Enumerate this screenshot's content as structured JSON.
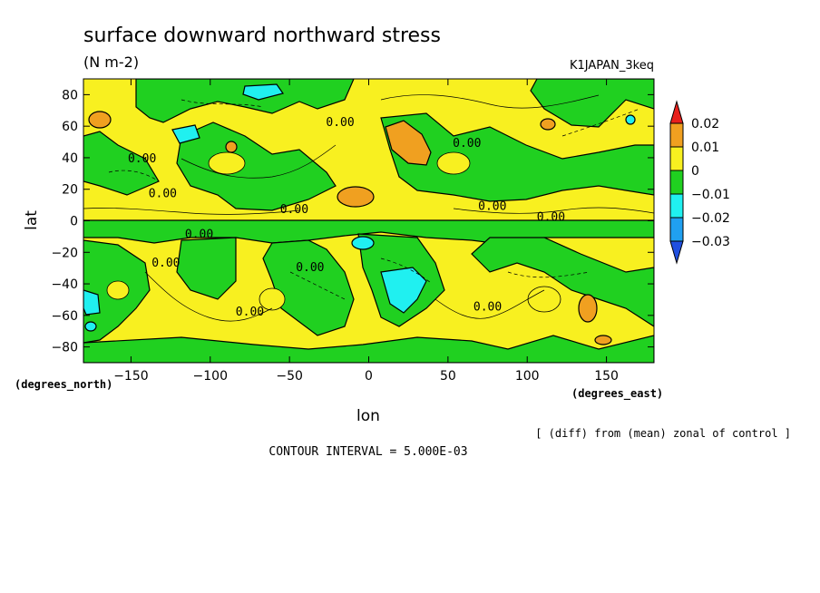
{
  "chart_data": {
    "type": "heatmap",
    "title": "surface downward northward stress",
    "units": "(N m-2)",
    "run_label": "K1JAPAN_3keq",
    "xlabel": "lon",
    "ylabel": "lat",
    "x_unit": "(degrees_east)",
    "y_unit": "(degrees_north)",
    "xlim": [
      -180,
      180
    ],
    "ylim": [
      -90,
      90
    ],
    "x_ticks": [
      -150,
      -100,
      -50,
      0,
      50,
      100,
      150
    ],
    "y_ticks": [
      -80,
      -60,
      -40,
      -20,
      0,
      20,
      40,
      60,
      80
    ],
    "colorbar": {
      "levels": [
        0.02,
        0.01,
        0,
        -0.01,
        -0.02,
        -0.03
      ],
      "labels": [
        "0.02",
        "0.01",
        "0",
        "−0.01",
        "−0.02",
        "−0.03"
      ],
      "colors": [
        "#e8201c",
        "#f0a020",
        "#f8f020",
        "#20d020",
        "#20f0f0",
        "#20a0f0",
        "#2050e0"
      ]
    },
    "contour_labels": [
      {
        "text": "0.00",
        "lon": -18,
        "lat": 60
      },
      {
        "text": "0.00",
        "lon": 62,
        "lat": 47
      },
      {
        "text": "0.00",
        "lon": -130,
        "lat": 15
      },
      {
        "text": "0.00",
        "lon": -47,
        "lat": 5
      },
      {
        "text": "0.00",
        "lon": 78,
        "lat": 7
      },
      {
        "text": "0.00",
        "lon": 115,
        "lat": 0
      },
      {
        "text": "0.00",
        "lon": -107,
        "lat": -11
      },
      {
        "text": "0.00",
        "lon": 75,
        "lat": -57
      },
      {
        "text": "0.00",
        "lon": -128,
        "lat": -29
      },
      {
        "text": "0.00",
        "lon": -37,
        "lat": -32
      },
      {
        "text": "0.00",
        "lon": -75,
        "lat": -60
      },
      {
        "text": "0.00",
        "lon": -143,
        "lat": 37
      }
    ],
    "note": "[ (diff) from (mean) zonal of control ]",
    "contour_interval": "CONTOUR INTERVAL = 5.000E-03"
  }
}
